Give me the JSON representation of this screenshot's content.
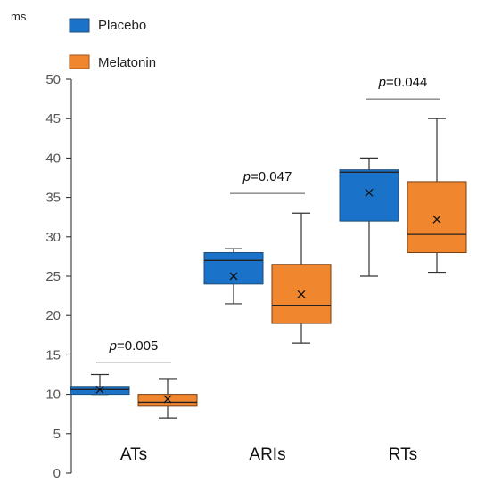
{
  "chart_data": {
    "type": "box",
    "ylabel": "ms",
    "ylim": [
      0,
      50
    ],
    "yticks": [
      0,
      5,
      10,
      15,
      20,
      25,
      30,
      35,
      40,
      45,
      50
    ],
    "categories": [
      "ATs",
      "ARIs",
      "RTs"
    ],
    "legend_position": "top-left",
    "series": [
      {
        "name": "Placebo",
        "color": "#1a72c9",
        "boxes": [
          {
            "category": "ATs",
            "min": 10.0,
            "q1": 10.0,
            "median": 10.6,
            "q3": 11.0,
            "max": 12.5,
            "mean": 10.6
          },
          {
            "category": "ARIs",
            "min": 21.5,
            "q1": 24.0,
            "median": 27.0,
            "q3": 28.0,
            "max": 28.5,
            "mean": 25.0
          },
          {
            "category": "RTs",
            "min": 25.0,
            "q1": 32.0,
            "median": 38.2,
            "q3": 38.5,
            "max": 40.0,
            "mean": 35.6
          }
        ]
      },
      {
        "name": "Melatonin",
        "color": "#f0862e",
        "boxes": [
          {
            "category": "ATs",
            "min": 7.0,
            "q1": 8.5,
            "median": 9.0,
            "q3": 10.0,
            "max": 12.0,
            "mean": 9.4
          },
          {
            "category": "ARIs",
            "min": 16.5,
            "q1": 19.0,
            "median": 21.3,
            "q3": 26.5,
            "max": 33.0,
            "mean": 22.7
          },
          {
            "category": "RTs",
            "min": 25.5,
            "q1": 28.0,
            "median": 30.3,
            "q3": 37.0,
            "max": 45.0,
            "mean": 32.2
          }
        ]
      }
    ],
    "annotations": [
      {
        "category": "ATs",
        "p_label": "p",
        "p_value": "=0.005",
        "y": 14.0
      },
      {
        "category": "ARIs",
        "p_label": "p",
        "p_value": "=0.047",
        "y": 35.5
      },
      {
        "category": "RTs",
        "p_label": "p",
        "p_value": "=0.044",
        "y": 47.5
      }
    ]
  }
}
